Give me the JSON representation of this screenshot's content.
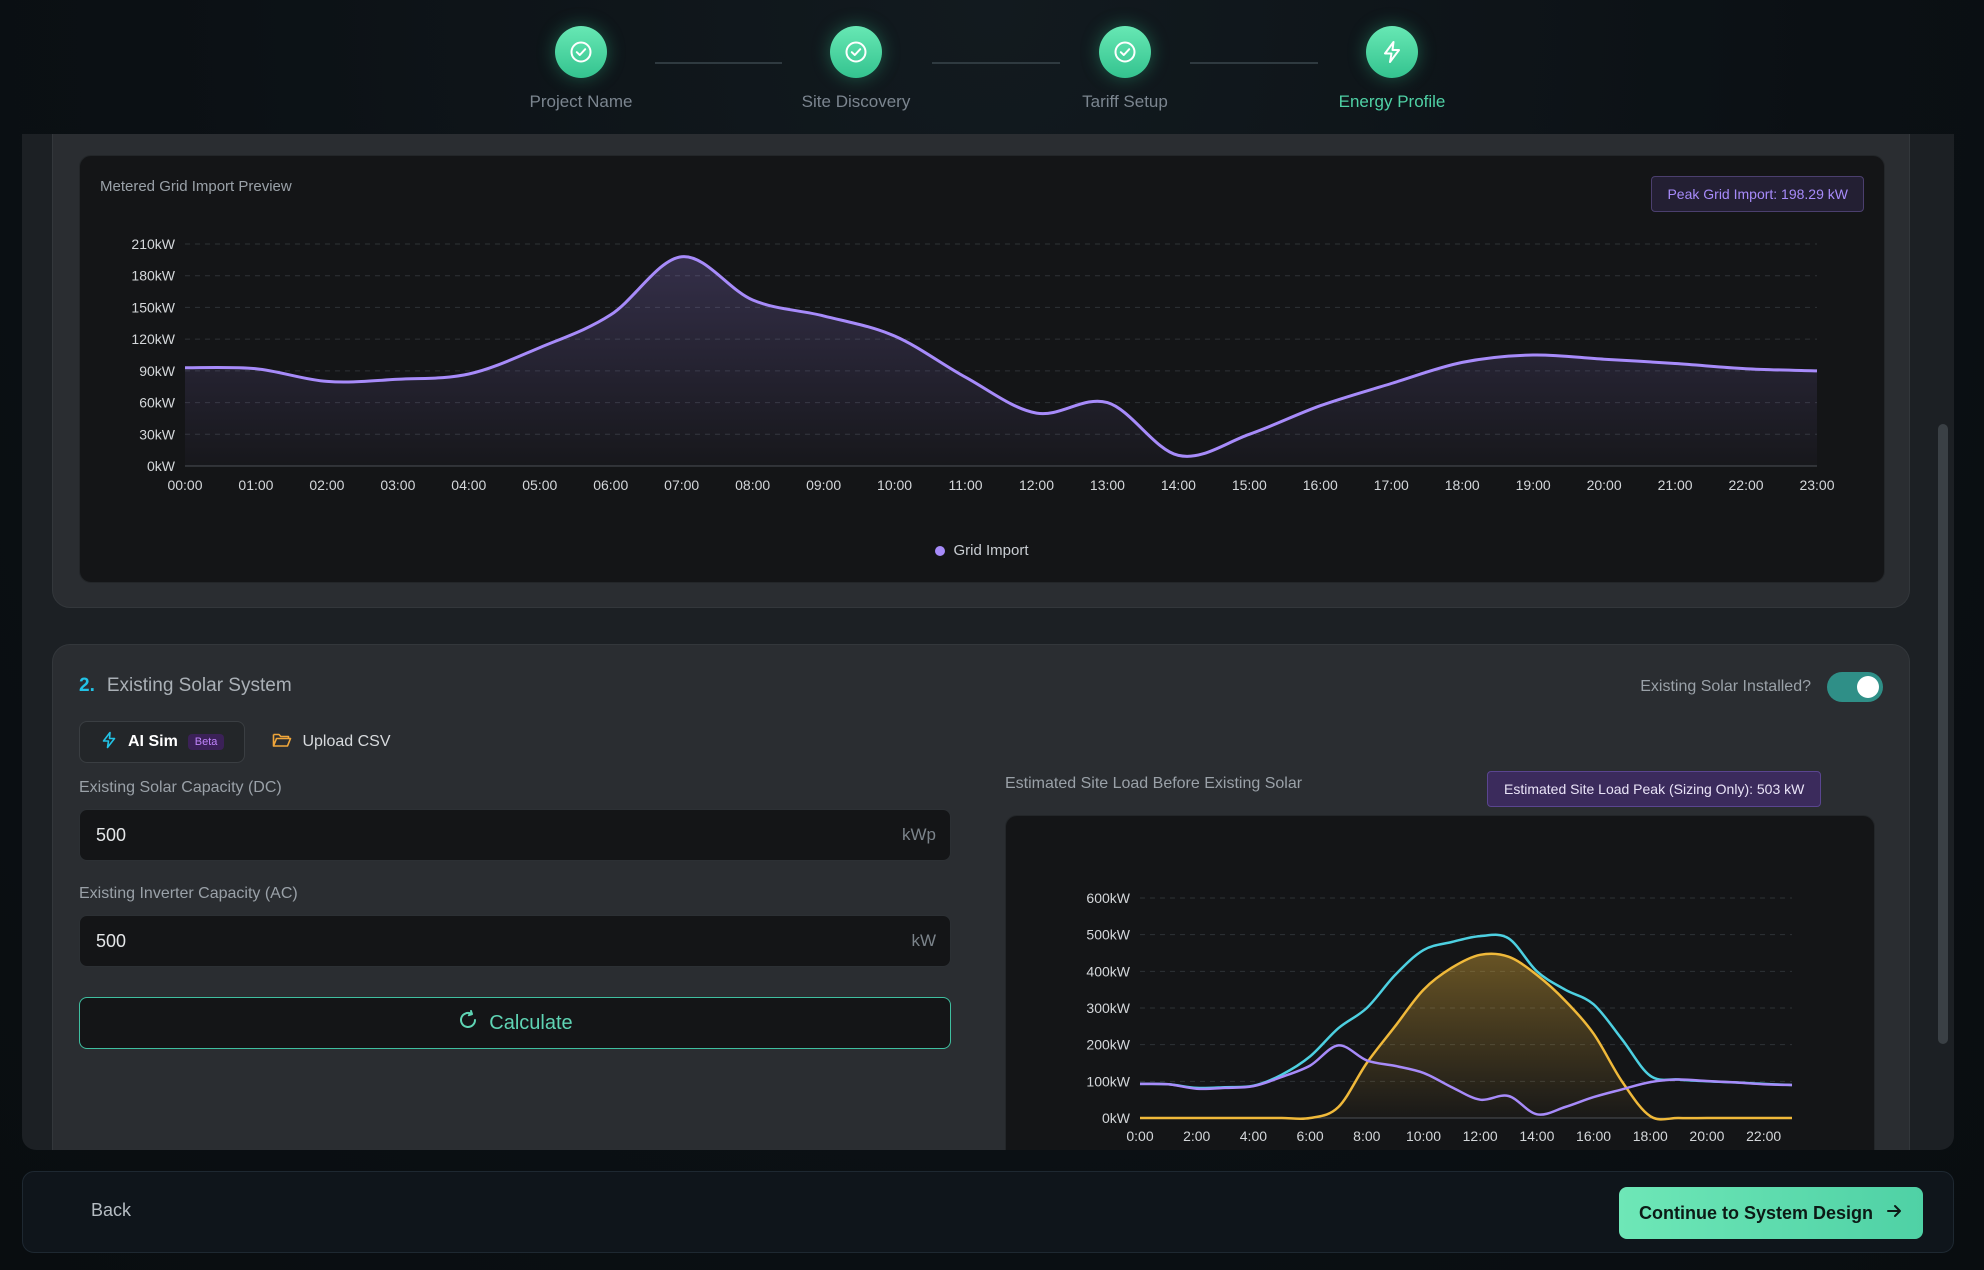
{
  "stepper": {
    "steps": [
      {
        "label": "Project Name",
        "state": "done",
        "icon": "check-icon"
      },
      {
        "label": "Site Discovery",
        "state": "done",
        "icon": "check-icon"
      },
      {
        "label": "Tariff Setup",
        "state": "done",
        "icon": "check-icon"
      },
      {
        "label": "Energy Profile",
        "state": "active",
        "icon": "lightning-icon"
      }
    ]
  },
  "grid_preview": {
    "title": "Metered Grid Import Preview",
    "peak_badge": "Peak Grid Import: 198.29 kW",
    "legend_label": "Grid Import"
  },
  "solar_section": {
    "number": "2.",
    "title": "Existing Solar System",
    "toggle_label": "Existing Solar Installed?",
    "toggle_on": true,
    "tabs": {
      "ai_sim": "AI Sim",
      "beta": "Beta",
      "upload": "Upload CSV"
    },
    "dc_capacity": {
      "label": "Existing Solar Capacity (DC)",
      "value": "500",
      "unit": "kWp"
    },
    "ac_capacity": {
      "label": "Existing Inverter Capacity (AC)",
      "value": "500",
      "unit": "kW"
    },
    "calculate_label": "Calculate",
    "load_chart_title": "Estimated Site Load Before Existing Solar",
    "load_badge": "Estimated Site Load Peak (Sizing Only): 503 kW"
  },
  "footer": {
    "back_label": "Back",
    "continue_label": "Continue to System Design"
  },
  "colors": {
    "accent_green": "#4fd1a5",
    "grid_import": "#a78bfa",
    "site_load": "#4dd0e1",
    "solar": "#f0b93a"
  },
  "chart_data": [
    {
      "type": "area",
      "title": "Metered Grid Import Preview",
      "xlabel": "",
      "ylabel": "",
      "x": [
        "00:00",
        "01:00",
        "02:00",
        "03:00",
        "04:00",
        "05:00",
        "06:00",
        "07:00",
        "08:00",
        "09:00",
        "10:00",
        "11:00",
        "12:00",
        "13:00",
        "14:00",
        "15:00",
        "16:00",
        "17:00",
        "18:00",
        "19:00",
        "20:00",
        "21:00",
        "22:00",
        "23:00"
      ],
      "ylim": [
        0,
        210
      ],
      "yticks": [
        0,
        30,
        60,
        90,
        120,
        150,
        180,
        210
      ],
      "ytick_labels": [
        "0kW",
        "30kW",
        "60kW",
        "90kW",
        "120kW",
        "150kW",
        "180kW",
        "210kW"
      ],
      "grid": true,
      "legend_position": "bottom",
      "series": [
        {
          "name": "Grid Import",
          "color": "#a78bfa",
          "values": [
            93,
            92,
            80,
            82,
            87,
            112,
            143,
            198,
            157,
            142,
            123,
            84,
            50,
            60,
            10,
            30,
            57,
            78,
            98,
            105,
            101,
            97,
            92,
            90
          ]
        }
      ]
    },
    {
      "type": "line",
      "title": "Estimated Site Load Before Existing Solar",
      "xlabel": "",
      "ylabel": "",
      "x": [
        0,
        1,
        2,
        3,
        4,
        5,
        6,
        7,
        8,
        9,
        10,
        11,
        12,
        13,
        14,
        15,
        16,
        17,
        18,
        19,
        20,
        21,
        22,
        23
      ],
      "xtick_labels": [
        "0:00",
        "2:00",
        "4:00",
        "6:00",
        "8:00",
        "10:00",
        "12:00",
        "14:00",
        "16:00",
        "18:00",
        "20:00",
        "22:00"
      ],
      "xticks": [
        0,
        2,
        4,
        6,
        8,
        10,
        12,
        14,
        16,
        18,
        20,
        22
      ],
      "ylim": [
        0,
        600
      ],
      "yticks": [
        0,
        100,
        200,
        300,
        400,
        500,
        600
      ],
      "ytick_labels": [
        "0kW",
        "100kW",
        "200kW",
        "300kW",
        "400kW",
        "500kW",
        "600kW"
      ],
      "grid": true,
      "series": [
        {
          "color": "#4dd0e1",
          "values": [
            93,
            92,
            82,
            84,
            88,
            118,
            168,
            245,
            300,
            390,
            458,
            480,
            496,
            490,
            400,
            350,
            310,
            215,
            115,
            105,
            100,
            97,
            93,
            90
          ]
        },
        {
          "color": "#f0b93a",
          "area": true,
          "values": [
            0,
            0,
            0,
            0,
            0,
            0,
            0,
            30,
            150,
            250,
            350,
            410,
            445,
            440,
            390,
            320,
            230,
            100,
            5,
            0,
            0,
            0,
            0,
            0
          ]
        },
        {
          "color": "#a78bfa",
          "values": [
            93,
            92,
            80,
            82,
            87,
            112,
            143,
            198,
            157,
            142,
            123,
            84,
            50,
            60,
            10,
            30,
            57,
            78,
            98,
            105,
            101,
            97,
            92,
            90
          ]
        }
      ]
    }
  ]
}
